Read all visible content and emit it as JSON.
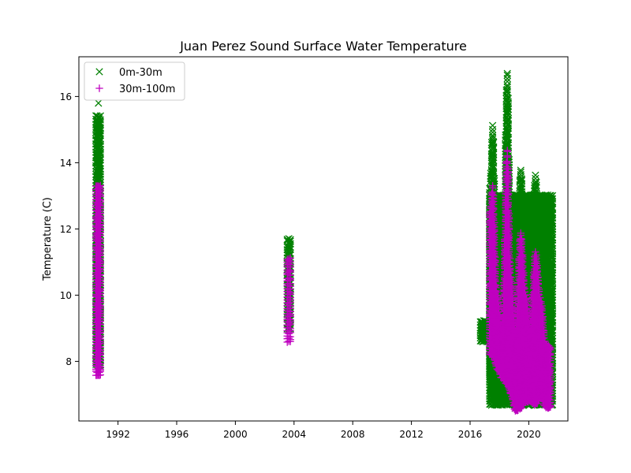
{
  "chart_data": {
    "type": "scatter",
    "title": "Juan Perez Sound Surface Water Temperature",
    "xlabel": "",
    "ylabel": "Temperature (C)",
    "xlim": [
      "1989-05-01",
      "2022-09-01"
    ],
    "ylim": [
      6.2,
      17.2
    ],
    "x_ticks": [
      "1992",
      "1996",
      "2000",
      "2004",
      "2008",
      "2012",
      "2016",
      "2020"
    ],
    "y_ticks": [
      8,
      10,
      12,
      14,
      16
    ],
    "grid": false,
    "legend": "upper left",
    "series": [
      {
        "name": "0m-30m",
        "marker": "x",
        "color": "#008000",
        "ranges": [
          {
            "start": "1990-07-01",
            "end": "1990-10-20",
            "min": 7.9,
            "max": 15.4
          },
          {
            "start": "2003-07-15",
            "end": "2003-10-01",
            "min": 9.0,
            "max": 11.7
          },
          {
            "start": "2016-09-15",
            "end": "2017-03-01",
            "min": 8.6,
            "max": 9.2
          },
          {
            "start": "2017-05-01",
            "end": "2021-08-15",
            "min": 6.7,
            "max": 13.0
          }
        ],
        "envelope": [
          {
            "x": "2017-05-01",
            "min": 7.5,
            "max": 13.2
          },
          {
            "x": "2017-07-15",
            "min": 7.8,
            "max": 15.1
          },
          {
            "x": "2017-11-01",
            "min": 7.2,
            "max": 10.5
          },
          {
            "x": "2018-03-01",
            "min": 7.0,
            "max": 9.2
          },
          {
            "x": "2018-07-15",
            "min": 7.2,
            "max": 16.7
          },
          {
            "x": "2018-10-15",
            "min": 7.2,
            "max": 11.5
          },
          {
            "x": "2019-02-01",
            "min": 6.6,
            "max": 9.0
          },
          {
            "x": "2019-06-15",
            "min": 6.8,
            "max": 13.8
          },
          {
            "x": "2019-10-15",
            "min": 7.0,
            "max": 11.0
          },
          {
            "x": "2020-02-01",
            "min": 6.8,
            "max": 9.0
          },
          {
            "x": "2020-06-15",
            "min": 6.9,
            "max": 13.6
          },
          {
            "x": "2020-11-01",
            "min": 7.0,
            "max": 10.5
          },
          {
            "x": "2021-03-01",
            "min": 6.7,
            "max": 9.0
          },
          {
            "x": "2021-07-15",
            "min": 6.8,
            "max": 9.8
          }
        ],
        "outliers": [
          {
            "x": "1990-09-01",
            "y": 15.8
          },
          {
            "x": "2021-06-10",
            "y": 9.85
          }
        ]
      },
      {
        "name": "30m-100m",
        "marker": "+",
        "color": "#bf00bf",
        "ranges": [
          {
            "start": "1990-07-01",
            "end": "1990-10-20",
            "min": 7.6,
            "max": 13.3
          },
          {
            "start": "2003-07-15",
            "end": "2003-10-01",
            "min": 8.6,
            "max": 11.1
          }
        ],
        "envelope": [
          {
            "x": "2017-05-01",
            "min": 8.2,
            "max": 12.5
          },
          {
            "x": "2017-07-15",
            "min": 8.2,
            "max": 13.3
          },
          {
            "x": "2017-11-01",
            "min": 7.8,
            "max": 10.0
          },
          {
            "x": "2018-03-01",
            "min": 7.5,
            "max": 9.0
          },
          {
            "x": "2018-07-15",
            "min": 7.3,
            "max": 14.4
          },
          {
            "x": "2018-10-15",
            "min": 7.0,
            "max": 10.5
          },
          {
            "x": "2019-02-01",
            "min": 6.5,
            "max": 8.8
          },
          {
            "x": "2019-06-15",
            "min": 6.6,
            "max": 11.9
          },
          {
            "x": "2019-10-15",
            "min": 6.8,
            "max": 10.0
          },
          {
            "x": "2020-02-01",
            "min": 6.8,
            "max": 8.8
          },
          {
            "x": "2020-06-15",
            "min": 6.7,
            "max": 11.3
          },
          {
            "x": "2020-11-01",
            "min": 6.9,
            "max": 9.8
          },
          {
            "x": "2021-03-01",
            "min": 6.6,
            "max": 8.5
          },
          {
            "x": "2021-07-15",
            "min": 6.6,
            "max": 8.4
          }
        ],
        "outliers": []
      }
    ]
  }
}
